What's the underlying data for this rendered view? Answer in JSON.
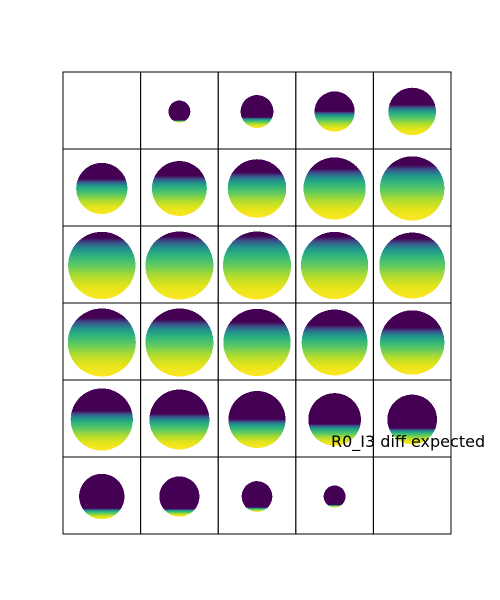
{
  "figure": {
    "grid": {
      "rows": 6,
      "cols": 5
    },
    "overlay_label": "R0_I3 diff expected",
    "colormap": "viridis",
    "background": "#ffffff",
    "border_color": "#000000",
    "cells": [
      {
        "r": 0,
        "c": 0,
        "size": 0,
        "fill": 0.0
      },
      {
        "r": 0,
        "c": 1,
        "size": 0.3,
        "fill": 0.0
      },
      {
        "r": 0,
        "c": 2,
        "size": 0.45,
        "fill": 0.25
      },
      {
        "r": 0,
        "c": 3,
        "size": 0.55,
        "fill": 0.45
      },
      {
        "r": 0,
        "c": 4,
        "size": 0.65,
        "fill": 0.6
      },
      {
        "r": 1,
        "c": 0,
        "size": 0.7,
        "fill": 0.65
      },
      {
        "r": 1,
        "c": 1,
        "size": 0.75,
        "fill": 0.7
      },
      {
        "r": 1,
        "c": 2,
        "size": 0.8,
        "fill": 0.75
      },
      {
        "r": 1,
        "c": 3,
        "size": 0.85,
        "fill": 0.8
      },
      {
        "r": 1,
        "c": 4,
        "size": 0.88,
        "fill": 0.85
      },
      {
        "r": 2,
        "c": 0,
        "size": 0.92,
        "fill": 0.9
      },
      {
        "r": 2,
        "c": 1,
        "size": 0.93,
        "fill": 0.92
      },
      {
        "r": 2,
        "c": 2,
        "size": 0.93,
        "fill": 0.93
      },
      {
        "r": 2,
        "c": 3,
        "size": 0.92,
        "fill": 0.92
      },
      {
        "r": 2,
        "c": 4,
        "size": 0.9,
        "fill": 0.9
      },
      {
        "r": 3,
        "c": 0,
        "size": 0.93,
        "fill": 0.85
      },
      {
        "r": 3,
        "c": 1,
        "size": 0.93,
        "fill": 0.82
      },
      {
        "r": 3,
        "c": 2,
        "size": 0.92,
        "fill": 0.78
      },
      {
        "r": 3,
        "c": 3,
        "size": 0.9,
        "fill": 0.74
      },
      {
        "r": 3,
        "c": 4,
        "size": 0.88,
        "fill": 0.7
      },
      {
        "r": 4,
        "c": 0,
        "size": 0.85,
        "fill": 0.6
      },
      {
        "r": 4,
        "c": 1,
        "size": 0.82,
        "fill": 0.55
      },
      {
        "r": 4,
        "c": 2,
        "size": 0.78,
        "fill": 0.45
      },
      {
        "r": 4,
        "c": 3,
        "size": 0.72,
        "fill": 0.35
      },
      {
        "r": 4,
        "c": 4,
        "size": 0.68,
        "fill": 0.25
      },
      {
        "r": 5,
        "c": 0,
        "size": 0.62,
        "fill": 0.15
      },
      {
        "r": 5,
        "c": 1,
        "size": 0.55,
        "fill": 0.1
      },
      {
        "r": 5,
        "c": 2,
        "size": 0.42,
        "fill": 0.05
      },
      {
        "r": 5,
        "c": 3,
        "size": 0.3,
        "fill": 0.02
      },
      {
        "r": 5,
        "c": 4,
        "size": 0,
        "fill": 0.0
      }
    ]
  }
}
